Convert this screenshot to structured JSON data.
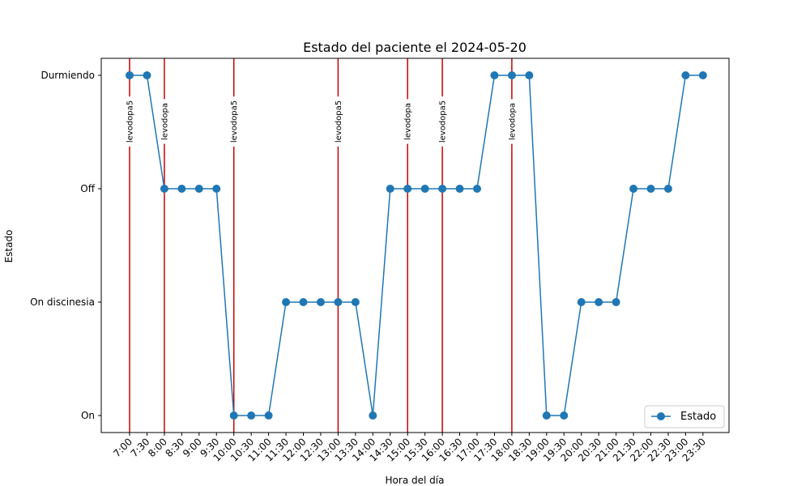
{
  "chart_data": {
    "type": "line",
    "title": "Estado del paciente el 2024-05-20",
    "xlabel": "Hora del día",
    "ylabel": "Estado",
    "categories": [
      "7:00",
      "7:30",
      "8:00",
      "8:30",
      "9:00",
      "9:30",
      "10:00",
      "10:30",
      "11:00",
      "11:30",
      "12:00",
      "12:30",
      "13:00",
      "13:30",
      "14:00",
      "14:30",
      "15:00",
      "15:30",
      "16:00",
      "16:30",
      "17:00",
      "17:30",
      "18:00",
      "18:30",
      "19:00",
      "19:30",
      "20:00",
      "20:30",
      "21:00",
      "21:30",
      "22:00",
      "22:30",
      "23:00",
      "23:30"
    ],
    "y_categories": [
      "On",
      "On discinesia",
      "Off",
      "Durmiendo"
    ],
    "series": [
      {
        "name": "Estado",
        "color": "#1f77b4",
        "values": [
          "Durmiendo",
          "Durmiendo",
          "Off",
          "Off",
          "Off",
          "Off",
          "On",
          "On",
          "On",
          "On discinesia",
          "On discinesia",
          "On discinesia",
          "On discinesia",
          "On discinesia",
          "On",
          "Off",
          "Off",
          "Off",
          "Off",
          "Off",
          "Off",
          "Durmiendo",
          "Durmiendo",
          "Durmiendo",
          "On",
          "On",
          "On discinesia",
          "On discinesia",
          "On discinesia",
          "Off",
          "Off",
          "Off",
          "Durmiendo",
          "Durmiendo"
        ]
      }
    ],
    "medications": [
      {
        "time": "7:00",
        "label": "levodopa5"
      },
      {
        "time": "8:00",
        "label": "levodopa"
      },
      {
        "time": "10:00",
        "label": "levodopa5"
      },
      {
        "time": "13:00",
        "label": "levodopa5"
      },
      {
        "time": "15:00",
        "label": "levodopa"
      },
      {
        "time": "16:00",
        "label": "levodopa5"
      },
      {
        "time": "18:00",
        "label": "levodopa"
      }
    ],
    "medication_color": "#cc0000",
    "grid": false,
    "legend_position": "lower-right"
  }
}
